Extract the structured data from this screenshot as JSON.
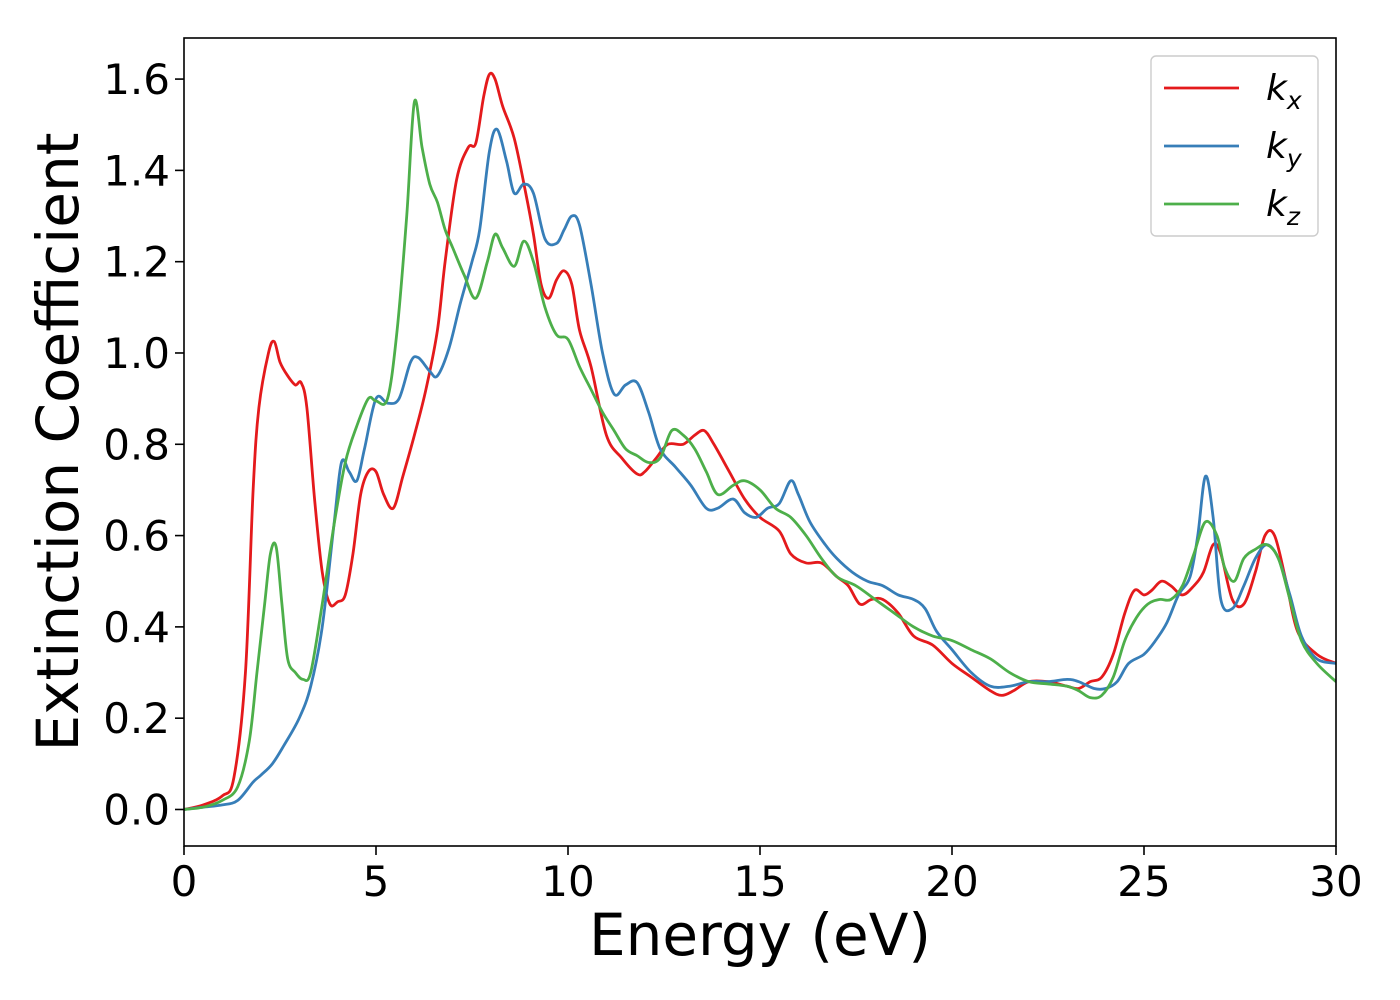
{
  "colors": {
    "kx": "#e41a1c",
    "ky": "#377eb8",
    "kz": "#4daf4a",
    "axis": "#000000",
    "legend_border": "#cccccc"
  },
  "chart_data": {
    "type": "line",
    "xlabel": "Energy (eV)",
    "ylabel": "Extinction Coefficient",
    "xlim": [
      0,
      30
    ],
    "ylim": [
      -0.08,
      1.69
    ],
    "xticks": [
      0,
      5,
      10,
      15,
      20,
      25,
      30
    ],
    "xtick_labels": [
      "0",
      "5",
      "10",
      "15",
      "20",
      "25",
      "30"
    ],
    "yticks": [
      0.0,
      0.2,
      0.4,
      0.6,
      0.8,
      1.0,
      1.2,
      1.4,
      1.6
    ],
    "ytick_labels": [
      "0.0",
      "0.2",
      "0.4",
      "0.6",
      "0.8",
      "1.0",
      "1.2",
      "1.4",
      "1.6"
    ],
    "grid": false,
    "legend_position": "top-right",
    "series": [
      {
        "name": "k",
        "subscript": "x",
        "color": "#e41a1c",
        "x": [
          0,
          0.5,
          1.0,
          1.3,
          1.6,
          1.8,
          1.95,
          2.2,
          2.35,
          2.5,
          2.7,
          2.9,
          3.05,
          3.2,
          3.4,
          3.6,
          3.8,
          4.0,
          4.2,
          4.4,
          4.6,
          4.8,
          5.0,
          5.2,
          5.45,
          5.7,
          6.0,
          6.3,
          6.6,
          6.8,
          7.1,
          7.4,
          7.6,
          7.8,
          7.95,
          8.1,
          8.3,
          8.6,
          8.9,
          9.1,
          9.3,
          9.5,
          9.7,
          9.9,
          10.1,
          10.3,
          10.6,
          11.0,
          11.4,
          11.8,
          12.0,
          12.3,
          12.6,
          13.0,
          13.3,
          13.55,
          13.8,
          14.2,
          14.6,
          15.0,
          15.5,
          15.8,
          16.2,
          16.6,
          17.0,
          17.3,
          17.6,
          17.9,
          18.2,
          18.6,
          19.0,
          19.5,
          20.0,
          20.5,
          21.0,
          21.3,
          21.6,
          22.0,
          22.5,
          23.0,
          23.3,
          23.6,
          23.9,
          24.2,
          24.5,
          24.75,
          25.0,
          25.2,
          25.45,
          25.7,
          26.0,
          26.3,
          26.55,
          26.8,
          27.0,
          27.3,
          27.6,
          27.9,
          28.15,
          28.4,
          28.7,
          29.0,
          29.5,
          30.0
        ],
        "y": [
          0.0,
          0.01,
          0.03,
          0.07,
          0.3,
          0.7,
          0.88,
          1.0,
          1.025,
          0.98,
          0.95,
          0.93,
          0.935,
          0.88,
          0.68,
          0.52,
          0.45,
          0.455,
          0.47,
          0.56,
          0.69,
          0.74,
          0.74,
          0.69,
          0.66,
          0.73,
          0.82,
          0.92,
          1.05,
          1.2,
          1.38,
          1.45,
          1.46,
          1.56,
          1.61,
          1.6,
          1.54,
          1.47,
          1.35,
          1.26,
          1.15,
          1.12,
          1.16,
          1.18,
          1.15,
          1.05,
          0.97,
          0.82,
          0.77,
          0.735,
          0.74,
          0.77,
          0.8,
          0.8,
          0.82,
          0.83,
          0.8,
          0.74,
          0.68,
          0.64,
          0.61,
          0.56,
          0.54,
          0.54,
          0.51,
          0.49,
          0.45,
          0.46,
          0.46,
          0.43,
          0.38,
          0.36,
          0.32,
          0.29,
          0.26,
          0.25,
          0.26,
          0.28,
          0.28,
          0.27,
          0.265,
          0.28,
          0.29,
          0.34,
          0.43,
          0.48,
          0.47,
          0.48,
          0.5,
          0.49,
          0.47,
          0.49,
          0.52,
          0.58,
          0.56,
          0.46,
          0.45,
          0.52,
          0.6,
          0.6,
          0.5,
          0.39,
          0.34,
          0.32
        ]
      },
      {
        "name": "k",
        "subscript": "y",
        "color": "#377eb8",
        "x": [
          0,
          0.5,
          1.0,
          1.4,
          1.8,
          2.0,
          2.3,
          2.6,
          3.0,
          3.3,
          3.6,
          3.9,
          4.1,
          4.3,
          4.5,
          4.7,
          5.0,
          5.3,
          5.6,
          5.9,
          6.1,
          6.4,
          6.6,
          6.9,
          7.2,
          7.5,
          7.7,
          7.95,
          8.15,
          8.4,
          8.6,
          8.85,
          9.1,
          9.4,
          9.7,
          9.9,
          10.1,
          10.3,
          10.6,
          10.9,
          11.2,
          11.5,
          11.8,
          12.1,
          12.4,
          12.8,
          13.2,
          13.6,
          13.9,
          14.3,
          14.6,
          14.9,
          15.2,
          15.5,
          15.8,
          16.0,
          16.3,
          16.7,
          17.0,
          17.4,
          17.8,
          18.2,
          18.6,
          19.0,
          19.3,
          19.6,
          20.0,
          20.5,
          21.0,
          21.5,
          22.0,
          22.5,
          23.0,
          23.3,
          23.7,
          24.0,
          24.3,
          24.6,
          25.0,
          25.3,
          25.6,
          25.9,
          26.2,
          26.4,
          26.6,
          26.8,
          27.0,
          27.3,
          27.6,
          27.9,
          28.2,
          28.5,
          28.8,
          29.1,
          29.5,
          30.0
        ],
        "y": [
          0.0,
          0.005,
          0.01,
          0.02,
          0.06,
          0.075,
          0.1,
          0.14,
          0.2,
          0.27,
          0.4,
          0.62,
          0.76,
          0.74,
          0.72,
          0.79,
          0.9,
          0.89,
          0.9,
          0.98,
          0.99,
          0.96,
          0.95,
          1.01,
          1.11,
          1.2,
          1.27,
          1.44,
          1.49,
          1.42,
          1.35,
          1.37,
          1.35,
          1.25,
          1.24,
          1.27,
          1.3,
          1.28,
          1.15,
          1.0,
          0.91,
          0.93,
          0.935,
          0.87,
          0.79,
          0.75,
          0.71,
          0.66,
          0.66,
          0.68,
          0.65,
          0.64,
          0.66,
          0.67,
          0.72,
          0.69,
          0.63,
          0.58,
          0.55,
          0.52,
          0.5,
          0.49,
          0.47,
          0.46,
          0.44,
          0.39,
          0.35,
          0.3,
          0.27,
          0.27,
          0.28,
          0.28,
          0.285,
          0.28,
          0.265,
          0.265,
          0.28,
          0.32,
          0.34,
          0.37,
          0.41,
          0.47,
          0.51,
          0.6,
          0.73,
          0.64,
          0.46,
          0.44,
          0.49,
          0.55,
          0.58,
          0.55,
          0.47,
          0.38,
          0.33,
          0.32
        ]
      },
      {
        "name": "k",
        "subscript": "z",
        "color": "#4daf4a",
        "x": [
          0,
          0.5,
          1.0,
          1.4,
          1.7,
          1.9,
          2.1,
          2.25,
          2.4,
          2.55,
          2.7,
          2.9,
          3.1,
          3.3,
          3.6,
          3.9,
          4.2,
          4.5,
          4.8,
          5.0,
          5.3,
          5.55,
          5.8,
          6.0,
          6.2,
          6.4,
          6.6,
          6.8,
          7.0,
          7.3,
          7.6,
          7.9,
          8.1,
          8.3,
          8.6,
          8.85,
          9.1,
          9.4,
          9.7,
          10.0,
          10.3,
          10.6,
          10.9,
          11.2,
          11.5,
          11.8,
          12.1,
          12.4,
          12.7,
          13.0,
          13.3,
          13.6,
          13.9,
          14.3,
          14.6,
          15.0,
          15.4,
          15.8,
          16.2,
          16.6,
          17.0,
          17.5,
          18.0,
          18.5,
          19.0,
          19.5,
          20.0,
          20.5,
          21.0,
          21.5,
          22.0,
          22.5,
          23.0,
          23.3,
          23.6,
          23.9,
          24.2,
          24.5,
          24.8,
          25.1,
          25.4,
          25.7,
          26.0,
          26.3,
          26.6,
          26.9,
          27.1,
          27.35,
          27.6,
          27.9,
          28.2,
          28.5,
          28.8,
          29.1,
          29.5,
          30.0
        ],
        "y": [
          0.0,
          0.005,
          0.02,
          0.05,
          0.15,
          0.3,
          0.45,
          0.56,
          0.575,
          0.45,
          0.33,
          0.3,
          0.285,
          0.3,
          0.45,
          0.62,
          0.76,
          0.84,
          0.9,
          0.895,
          0.9,
          1.05,
          1.3,
          1.55,
          1.45,
          1.37,
          1.33,
          1.27,
          1.23,
          1.17,
          1.12,
          1.2,
          1.26,
          1.23,
          1.19,
          1.245,
          1.2,
          1.1,
          1.04,
          1.03,
          0.97,
          0.92,
          0.87,
          0.83,
          0.79,
          0.775,
          0.76,
          0.77,
          0.83,
          0.82,
          0.79,
          0.74,
          0.69,
          0.71,
          0.72,
          0.7,
          0.66,
          0.64,
          0.6,
          0.55,
          0.51,
          0.49,
          0.46,
          0.43,
          0.4,
          0.38,
          0.37,
          0.35,
          0.33,
          0.3,
          0.28,
          0.275,
          0.27,
          0.26,
          0.245,
          0.25,
          0.29,
          0.37,
          0.42,
          0.45,
          0.46,
          0.46,
          0.49,
          0.56,
          0.63,
          0.6,
          0.53,
          0.5,
          0.55,
          0.57,
          0.58,
          0.55,
          0.46,
          0.37,
          0.32,
          0.28
        ]
      }
    ]
  }
}
